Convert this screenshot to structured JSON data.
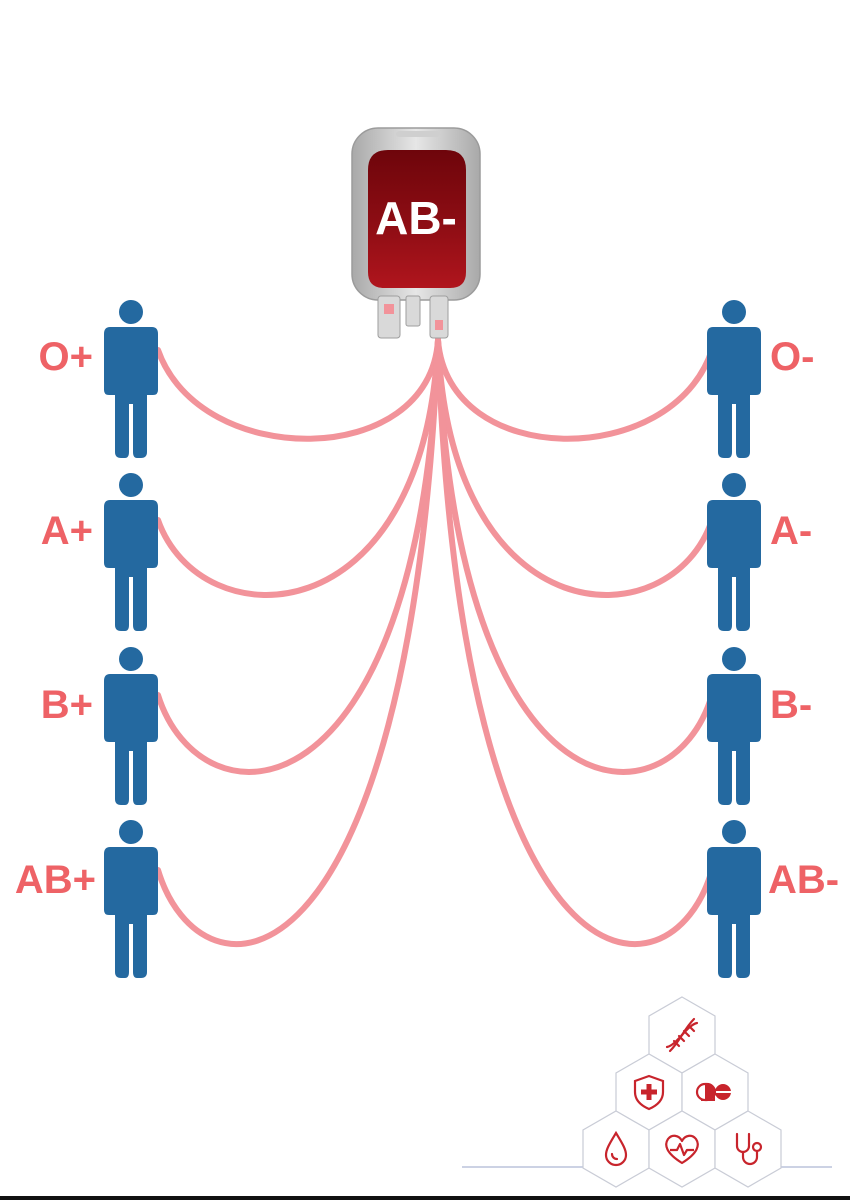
{
  "bag": {
    "label": "AB-"
  },
  "recipients_left": [
    {
      "label": "O+"
    },
    {
      "label": "A+"
    },
    {
      "label": "B+"
    },
    {
      "label": "AB+"
    }
  ],
  "recipients_right": [
    {
      "label": "O-"
    },
    {
      "label": "A-"
    },
    {
      "label": "B-"
    },
    {
      "label": "AB-"
    }
  ],
  "decor_icons": [
    "dna-icon",
    "shield-cross-icon",
    "pill-icon",
    "drop-icon",
    "heart-pulse-icon",
    "stethoscope-icon"
  ],
  "colors": {
    "tube": "#f2939a",
    "person": "#2469a0",
    "label": "#ee6266",
    "bag_blood": "#8e0d14",
    "bag_frame": "#bdbdbd",
    "icon_red": "#c8242c"
  }
}
